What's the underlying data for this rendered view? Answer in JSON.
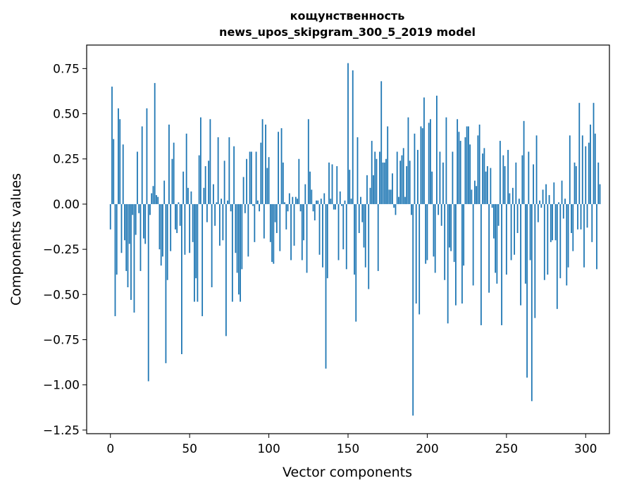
{
  "chart_data": {
    "type": "bar",
    "title": "кощунственность",
    "subtitle": "news_upos_skipgram_300_5_2019 model",
    "xlabel": "Vector components",
    "ylabel": "Components values",
    "xlim": [
      -15,
      315
    ],
    "ylim": [
      -1.27,
      0.88
    ],
    "xticks": [
      0,
      50,
      100,
      150,
      200,
      250,
      300
    ],
    "xtick_labels": [
      "0",
      "50",
      "100",
      "150",
      "200",
      "250",
      "300"
    ],
    "yticks": [
      -1.25,
      -1.0,
      -0.75,
      -0.5,
      -0.25,
      0.0,
      0.25,
      0.5,
      0.75
    ],
    "ytick_labels": [
      "−1.25",
      "−1.00",
      "−0.75",
      "−0.50",
      "−0.25",
      "0.00",
      "0.25",
      "0.50",
      "0.75"
    ],
    "grid": false,
    "bar_color": "#1f77b4",
    "values": [
      -0.14,
      0.65,
      0.36,
      -0.62,
      -0.39,
      0.53,
      0.47,
      -0.27,
      0.33,
      -0.2,
      -0.37,
      -0.46,
      -0.22,
      -0.53,
      -0.06,
      -0.6,
      -0.17,
      0.29,
      -0.05,
      -0.37,
      0.43,
      -0.19,
      -0.22,
      0.53,
      -0.98,
      -0.06,
      0.06,
      0.1,
      0.67,
      0.05,
      0.04,
      -0.25,
      -0.34,
      -0.29,
      0.13,
      -0.88,
      -0.42,
      0.44,
      -0.26,
      0.25,
      0.34,
      -0.14,
      -0.16,
      0.01,
      -0.12,
      -0.83,
      0.18,
      -0.28,
      0.39,
      0.09,
      -0.27,
      0.07,
      -0.21,
      -0.54,
      -0.41,
      -0.54,
      0.27,
      0.48,
      -0.62,
      0.09,
      0.21,
      -0.1,
      0.24,
      0.47,
      -0.46,
      0.11,
      -0.12,
      0.01,
      0.37,
      -0.23,
      0.03,
      -0.2,
      0.24,
      -0.73,
      0.02,
      0.37,
      -0.04,
      -0.54,
      0.32,
      -0.27,
      -0.38,
      -0.5,
      -0.54,
      -0.36,
      0.15,
      -0.05,
      0.25,
      -0.29,
      0.29,
      0.29,
      -0.01,
      -0.21,
      0.29,
      0.02,
      -0.04,
      0.34,
      0.47,
      -0.19,
      0.44,
      0.2,
      0.26,
      -0.21,
      -0.32,
      -0.33,
      -0.1,
      -0.16,
      0.4,
      -0.26,
      0.42,
      0.23,
      0.01,
      -0.14,
      -0.04,
      0.06,
      -0.31,
      0.04,
      -0.23,
      0.04,
      0.03,
      0.25,
      -0.04,
      -0.31,
      -0.2,
      0.11,
      -0.38,
      0.47,
      0.18,
      0.08,
      -0.04,
      -0.09,
      0.02,
      0.02,
      -0.28,
      0.03,
      -0.35,
      0.06,
      -0.91,
      -0.41,
      0.23,
      0.03,
      0.22,
      -0.03,
      -0.03,
      0.21,
      -0.31,
      0.07,
      -0.01,
      -0.25,
      0.02,
      -0.36,
      0.78,
      0.19,
      0.03,
      0.74,
      -0.39,
      -0.65,
      0.37,
      -0.16,
      0.04,
      -0.1,
      -0.24,
      -0.35,
      0.16,
      -0.47,
      0.09,
      0.35,
      0.16,
      0.29,
      0.25,
      -0.37,
      0.29,
      0.68,
      0.23,
      0.23,
      0.25,
      0.43,
      0.08,
      0.08,
      0.17,
      -0.02,
      -0.06,
      0.29,
      0.04,
      0.24,
      0.27,
      0.31,
      0.04,
      0.21,
      0.48,
      0.24,
      -0.06,
      -1.17,
      0.39,
      -0.55,
      0.3,
      -0.61,
      0.43,
      0.42,
      0.59,
      -0.33,
      -0.31,
      0.45,
      0.47,
      0.18,
      -0.29,
      -0.38,
      0.6,
      -0.06,
      0.29,
      -0.12,
      0.23,
      -0.42,
      0.48,
      -0.66,
      -0.24,
      -0.26,
      0.29,
      -0.32,
      -0.56,
      0.47,
      0.4,
      0.35,
      -0.55,
      -0.34,
      0.37,
      0.43,
      0.43,
      0.33,
      0.08,
      -0.45,
      0.13,
      0.1,
      0.38,
      0.44,
      -0.67,
      0.28,
      0.31,
      0.18,
      0.21,
      -0.49,
      0.2,
      -0.02,
      -0.19,
      -0.38,
      -0.44,
      -0.12,
      0.35,
      -0.67,
      0.27,
      0.21,
      -0.39,
      0.3,
      0.06,
      -0.31,
      0.09,
      -0.28,
      0.23,
      -0.16,
      0.03,
      -0.56,
      0.27,
      0.46,
      -0.44,
      -0.96,
      0.29,
      -0.31,
      -1.09,
      0.22,
      -0.63,
      0.38,
      -0.1,
      0.02,
      -0.02,
      0.08,
      -0.42,
      0.11,
      -0.39,
      0.05,
      -0.21,
      -0.2,
      0.12,
      -0.2,
      -0.58,
      0.01,
      -0.41,
      0.13,
      -0.08,
      0.03,
      -0.45,
      -0.35,
      0.38,
      -0.16,
      -0.26,
      0.23,
      0.21,
      -0.14,
      0.56,
      -0.14,
      0.38,
      -0.35,
      0.32,
      -0.13,
      0.34,
      0.44,
      -0.21,
      0.56,
      0.39,
      -0.36,
      0.23,
      0.11
    ]
  }
}
